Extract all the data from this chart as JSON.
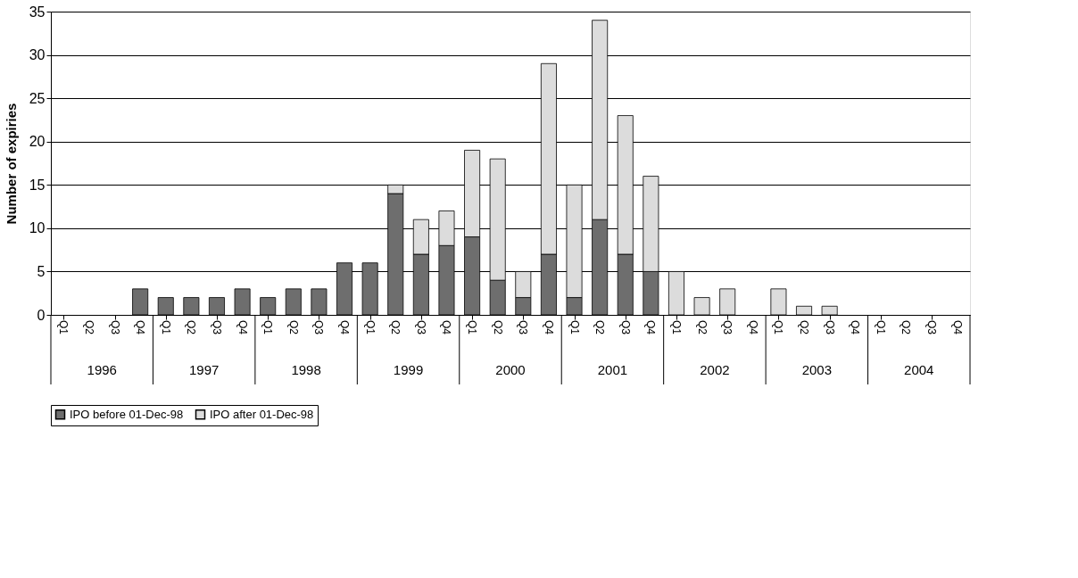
{
  "chart_data": {
    "type": "bar",
    "stacked": true,
    "ylabel": "Number of expiries",
    "categories": [
      "Q1",
      "Q2",
      "Q3",
      "Q4",
      "Q1",
      "Q2",
      "Q3",
      "Q4",
      "Q1",
      "Q2",
      "Q3",
      "Q4",
      "Q1",
      "Q2",
      "Q3",
      "Q4",
      "Q1",
      "Q2",
      "Q3",
      "Q4",
      "Q1",
      "Q2",
      "Q3",
      "Q4",
      "Q1",
      "Q2",
      "Q3",
      "Q4",
      "Q1",
      "Q2",
      "Q3",
      "Q4",
      "Q1",
      "Q2",
      "Q3",
      "Q4"
    ],
    "annotations": [
      "1996",
      "1997",
      "1998",
      "1999",
      "2000",
      "2001",
      "2002",
      "2003",
      "2004"
    ],
    "series": [
      {
        "name": "IPO before 01-Dec-98",
        "color": "#6e6e6e",
        "values": [
          0,
          0,
          0,
          3,
          2,
          2,
          2,
          3,
          2,
          3,
          3,
          6,
          6,
          14,
          7,
          8,
          9,
          4,
          2,
          7,
          2,
          11,
          7,
          5,
          0,
          0,
          0,
          0,
          0,
          0,
          0,
          0,
          0,
          0,
          0,
          0
        ]
      },
      {
        "name": "IPO after 01-Dec-98",
        "color": "#dcdcdc",
        "values": [
          0,
          0,
          0,
          0,
          0,
          0,
          0,
          0,
          0,
          0,
          0,
          0,
          0,
          1,
          4,
          4,
          10,
          14,
          3,
          22,
          13,
          23,
          16,
          11,
          5,
          2,
          3,
          0,
          3,
          1,
          1,
          0,
          0,
          0,
          0,
          0
        ]
      }
    ],
    "ylim": [
      0,
      35
    ],
    "yticks": [
      0,
      5,
      10,
      15,
      20,
      25,
      30,
      35
    ],
    "grid": "y",
    "legend": "bottom"
  }
}
